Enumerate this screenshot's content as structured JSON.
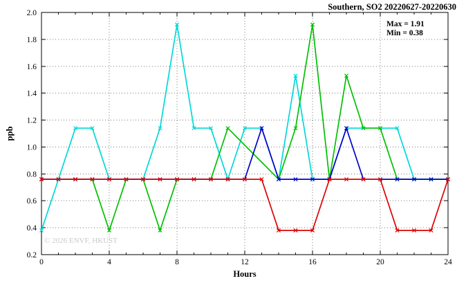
{
  "header": {
    "title": "Southern, SO2 20220627-20220630"
  },
  "annotations": {
    "max": "Max = 1.91",
    "min": "Min = 0.38"
  },
  "watermark": {
    "text": "© 2026 ENVF, HKUST"
  },
  "axes": {
    "x_label": "Hours",
    "y_label": "ppb"
  },
  "chart_data": {
    "type": "line",
    "title": "Southern, SO2 20220627-20220630",
    "xlabel": "Hours",
    "ylabel": "ppb",
    "xlim": [
      0,
      24
    ],
    "ylim": [
      0.2,
      2.0
    ],
    "x_major_ticks": [
      0,
      4,
      8,
      12,
      16,
      20,
      24
    ],
    "x_minor_tick_step": 1,
    "x_major_tick_every": 4,
    "y_ticks": [
      0.2,
      0.4,
      0.6,
      0.8,
      1.0,
      1.2,
      1.4,
      1.6,
      1.8,
      2.0
    ],
    "grid": true,
    "legend": "none",
    "marker_style": "x",
    "stats": {
      "max": 1.91,
      "min": 0.38
    },
    "x_hours": [
      0,
      1,
      2,
      3,
      4,
      5,
      6,
      7,
      8,
      9,
      10,
      11,
      12,
      13,
      14,
      15,
      16,
      17,
      18,
      19,
      20,
      21,
      22,
      23,
      24
    ],
    "series": [
      {
        "name": "cyan-series",
        "color": "#00d8d8",
        "values": [
          0.38,
          0.76,
          1.14,
          1.14,
          0.76,
          0.76,
          0.76,
          1.14,
          1.91,
          1.14,
          1.14,
          0.76,
          1.14,
          1.14,
          0.76,
          1.53,
          0.76,
          0.76,
          1.14,
          1.14,
          1.14,
          1.14,
          0.76,
          0.76,
          0.76
        ]
      },
      {
        "name": "green-series",
        "color": "#00c000",
        "values": [
          0.76,
          0.76,
          0.76,
          0.76,
          0.38,
          0.76,
          0.76,
          0.38,
          0.76,
          0.76,
          0.76,
          1.14,
          null,
          null,
          0.76,
          1.14,
          1.91,
          0.76,
          1.53,
          1.14,
          1.14,
          0.76,
          0.76,
          0.76,
          0.76
        ]
      },
      {
        "name": "blue-series",
        "color": "#0000cc",
        "values": [
          0.76,
          0.76,
          0.76,
          0.76,
          0.76,
          0.76,
          0.76,
          0.76,
          0.76,
          0.76,
          0.76,
          0.76,
          0.76,
          1.14,
          0.76,
          0.76,
          0.76,
          0.76,
          1.14,
          0.76,
          0.76,
          0.76,
          0.76,
          0.76,
          0.76
        ]
      },
      {
        "name": "red-series",
        "color": "#dd0000",
        "values": [
          0.76,
          0.76,
          0.76,
          0.76,
          0.76,
          0.76,
          0.76,
          0.76,
          0.76,
          0.76,
          0.76,
          0.76,
          0.76,
          0.76,
          0.38,
          0.38,
          0.38,
          0.76,
          0.76,
          0.76,
          0.76,
          0.38,
          0.38,
          0.38,
          0.76
        ]
      }
    ]
  }
}
